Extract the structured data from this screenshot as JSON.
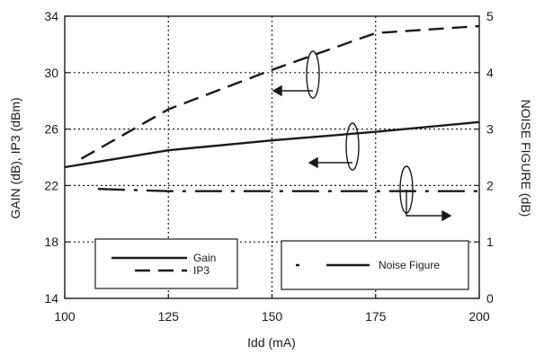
{
  "chart_data": {
    "type": "line",
    "title": "",
    "xlabel": "Idd (mA)",
    "ylabel_left": "GAIN (dB), IP3 (dBm)",
    "ylabel_right": "NOISE FIGURE (dB)",
    "xlim": [
      100,
      200
    ],
    "ylim_left": [
      14,
      34
    ],
    "ylim_right": [
      0,
      5
    ],
    "x_ticks": [
      100,
      125,
      150,
      175,
      200
    ],
    "y_left_ticks": [
      14,
      18,
      22,
      26,
      30,
      34
    ],
    "y_right_ticks": [
      0,
      1,
      2,
      3,
      4,
      5
    ],
    "grid": "dotted",
    "legend_left": {
      "entries": [
        "Gain",
        "IP3"
      ]
    },
    "legend_right": {
      "entries": [
        "Noise Figure"
      ]
    },
    "series": [
      {
        "name": "Gain",
        "axis": "left",
        "style": "solid",
        "x": [
          100,
          125,
          150,
          175,
          200
        ],
        "values": [
          23.3,
          24.5,
          25.2,
          25.8,
          26.5
        ]
      },
      {
        "name": "IP3",
        "axis": "left",
        "style": "dashed",
        "x": [
          104,
          125,
          150,
          175,
          200
        ],
        "values": [
          23.9,
          27.4,
          30.2,
          32.8,
          33.3
        ]
      },
      {
        "name": "Noise Figure",
        "axis": "right",
        "style": "dash-dot",
        "x": [
          108,
          125,
          150,
          175,
          200
        ],
        "values": [
          1.94,
          1.9,
          1.9,
          1.9,
          1.9
        ]
      }
    ]
  }
}
